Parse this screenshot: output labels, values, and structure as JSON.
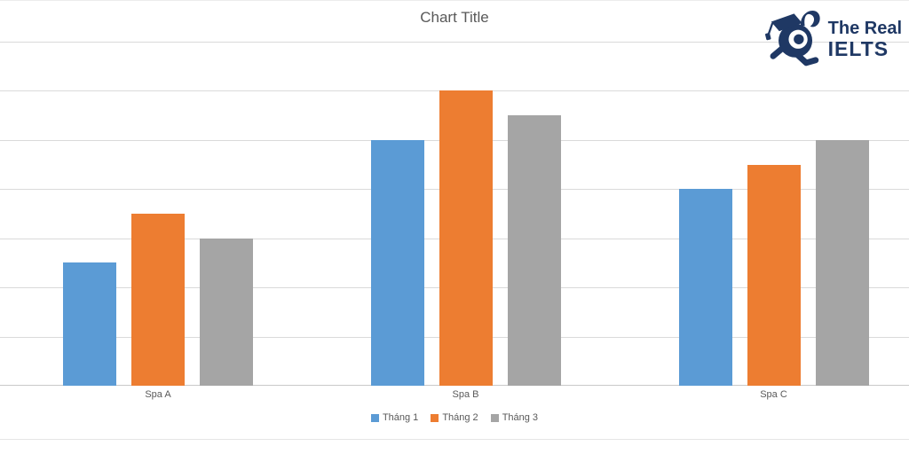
{
  "chart_data": {
    "type": "bar",
    "title": "Chart Title",
    "categories": [
      "Spa A",
      "Spa B",
      "Spa C"
    ],
    "series": [
      {
        "name": "Tháng 1",
        "color": "#5B9BD5",
        "values": [
          25,
          50,
          40
        ]
      },
      {
        "name": "Tháng 2",
        "color": "#ED7D31",
        "values": [
          35,
          60,
          45
        ]
      },
      {
        "name": "Tháng 3",
        "color": "#A5A5A5",
        "values": [
          30,
          55,
          50
        ]
      }
    ],
    "xlabel": "",
    "ylabel": "",
    "ylim": [
      0,
      70
    ],
    "gridline_step": 10,
    "grid": "horizontal",
    "y_axis_labels_visible": false,
    "legend_position": "bottom"
  },
  "logo": {
    "line1": "The Real",
    "line2": "IELTS",
    "color": "#1F3864",
    "mascot": "snail-graduate-icon"
  },
  "colors": {
    "gridline": "#DADADA",
    "axis_line": "#C9C9C9",
    "title_text": "#595959",
    "label_text": "#595959",
    "border_line": "#E5E5E5",
    "background": "#FFFFFF"
  }
}
